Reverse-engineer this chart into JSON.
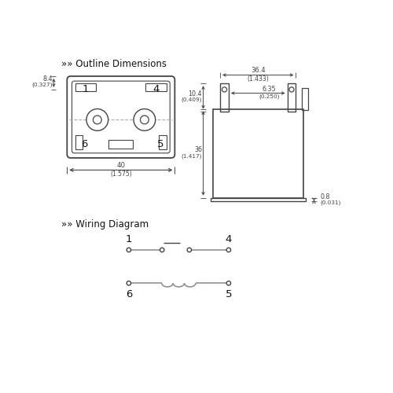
{
  "title_outline": "»» Outline Dimensions",
  "title_wiring": "»» Wiring Diagram",
  "bg_color": "#ffffff",
  "line_color": "#444444",
  "text_color": "#111111",
  "dim_color": "#444444",
  "gray": "#888888",
  "font_size_title": 8.5,
  "font_size_pin": 9.5,
  "font_size_dim": 6.0,
  "font_size_dim2": 5.5
}
